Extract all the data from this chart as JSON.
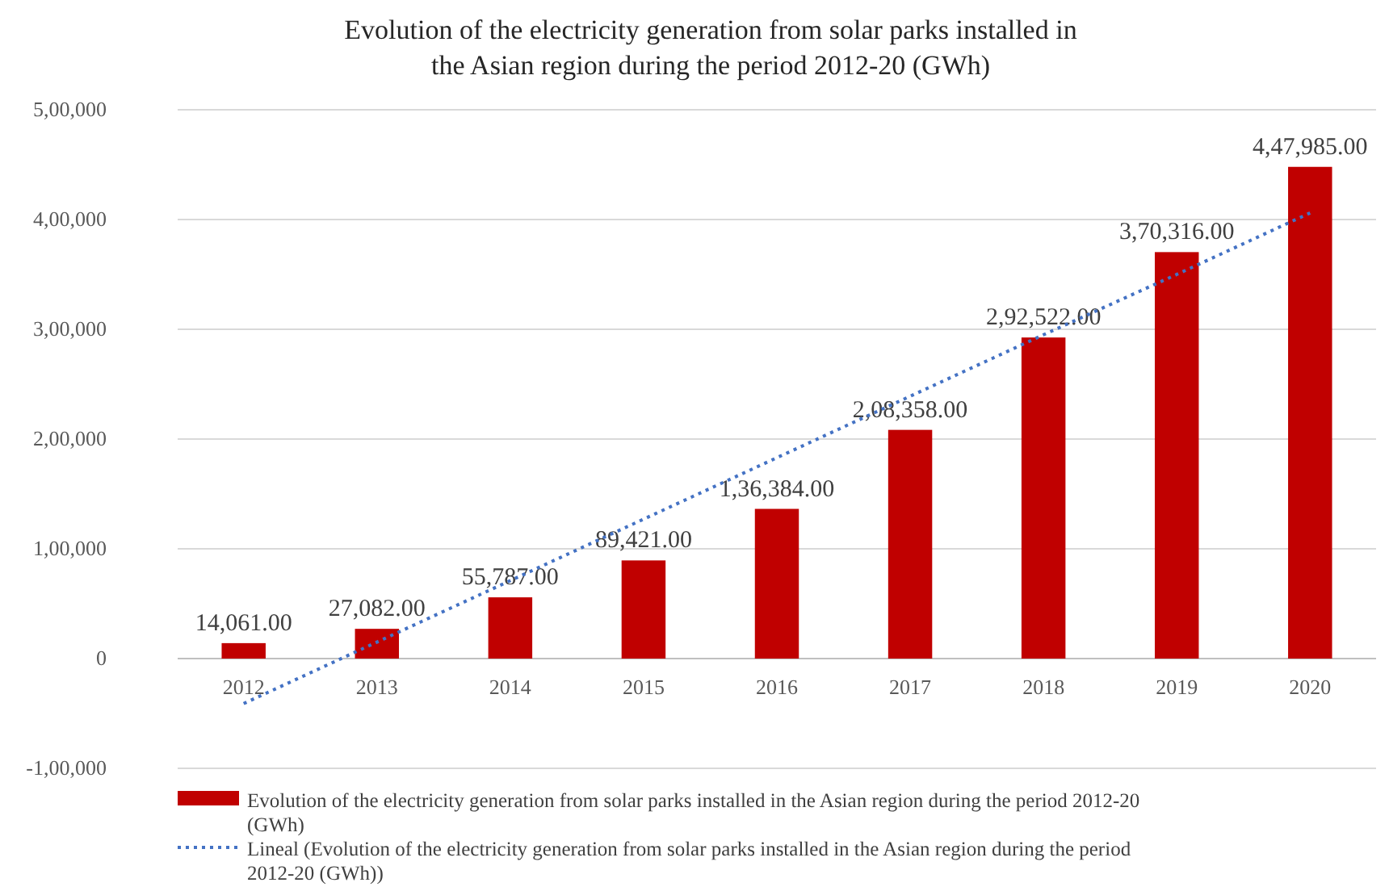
{
  "chart_data": {
    "type": "bar",
    "title": "Evolution of the electricity generation from solar parks installed in the Asian region during the period 2012-20 (GWh)",
    "categories": [
      "2012",
      "2013",
      "2014",
      "2015",
      "2016",
      "2017",
      "2018",
      "2019",
      "2020"
    ],
    "series": [
      {
        "name": "Evolution of the electricity generation from solar parks installed in the Asian region during the period 2012-20 (GWh)",
        "color": "#c00000",
        "values": [
          14061,
          27082,
          55787,
          89421,
          136384,
          208358,
          292522,
          370316,
          447985
        ],
        "value_labels": [
          "14,061.00",
          "27,082.00",
          "55,787.00",
          "89,421.00",
          "1,36,384.00",
          "2,08,358.00",
          "2,92,522.00",
          "3,70,316.00",
          "4,47,985.00"
        ]
      },
      {
        "type": "line",
        "name": "Lineal (Evolution of the electricity generation from solar parks installed in the Asian region during the period 2012-20 (GWh))",
        "color": "#4472c4",
        "line_style": "dotted",
        "values": [
          -41000,
          15000,
          71000,
          127000,
          183000,
          239000,
          295000,
          350000,
          406000
        ]
      }
    ],
    "ylim": [
      -100000,
      500000
    ],
    "yticks": [
      {
        "value": -100000,
        "label": "-1,00,000"
      },
      0,
      {
        "value": 100000,
        "label": "1,00,000"
      },
      {
        "value": 200000,
        "label": "2,00,000"
      },
      {
        "value": 300000,
        "label": "3,00,000"
      },
      {
        "value": 400000,
        "label": "4,00,000"
      },
      {
        "value": 500000,
        "label": "5,00,000"
      }
    ],
    "grid": "y",
    "legend": "bottom"
  }
}
